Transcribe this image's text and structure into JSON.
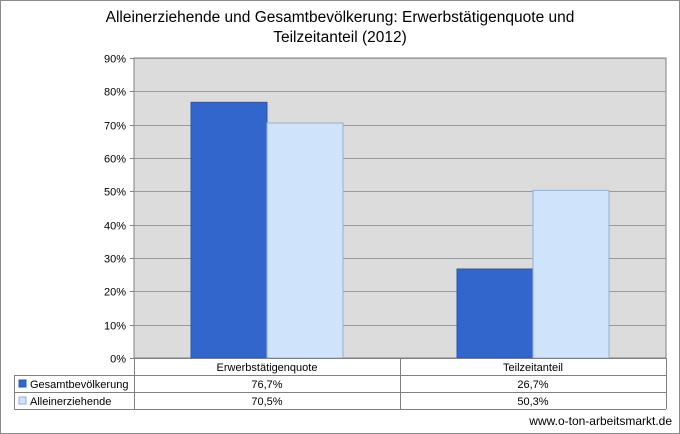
{
  "footer": "www.o-ton-arbeitsmarkt.de",
  "colors": {
    "series_1": "#3366cc",
    "series_2": "#cfe3fb",
    "plot_bg": "#dcdcdc",
    "grid": "#9a9a9a"
  },
  "chart_data": {
    "type": "bar",
    "title": "Alleinerziehende und Gesamtbevölkerung: Erwerbstätigenquote und Teilzeitanteil (2012)",
    "title_lines": [
      "Alleinerziehende und Gesamtbevölkerung: Erwerbstätigenquote und",
      "Teilzeitanteil (2012)"
    ],
    "categories": [
      "Erwerbstätigenquote",
      "Teilzeitanteil"
    ],
    "series": [
      {
        "name": "Gesamtbevölkerung",
        "values": [
          76.7,
          26.7
        ],
        "labels": [
          "76,7%",
          "26,7%"
        ]
      },
      {
        "name": "Alleinerziehende",
        "values": [
          70.5,
          50.3
        ],
        "labels": [
          "70,5%",
          "50,3%"
        ]
      }
    ],
    "ylim": [
      0,
      90
    ],
    "yticks": [
      "0%",
      "10%",
      "20%",
      "30%",
      "40%",
      "50%",
      "60%",
      "70%",
      "80%",
      "90%"
    ],
    "grid": true,
    "legend": "data-table"
  }
}
